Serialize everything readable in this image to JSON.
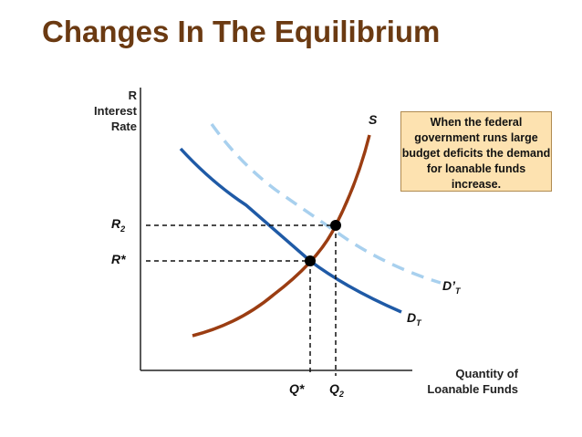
{
  "title": "Changes In The Equilibrium",
  "y_axis": {
    "line1": "R",
    "line2": "Interest",
    "line3": "Rate"
  },
  "x_axis": {
    "line1": "Quantity of",
    "line2": "Loanable Funds"
  },
  "curves": {
    "supply": "S",
    "demand_base": "D",
    "demand_new_base": "D’",
    "demand_sub": "T"
  },
  "price_labels": {
    "r_star": "R*",
    "r2_base": "R",
    "r2_sub": "2"
  },
  "quantity_labels": {
    "q_star": "Q*",
    "q2_base": "Q",
    "q2_sub": "2"
  },
  "callout": {
    "text": "When the federal government runs large budget deficits the demand for loanable funds increase."
  },
  "colors": {
    "title": "#6b3a12",
    "supply": "#9b3d12",
    "demand": "#1f5aa6",
    "demand_new": "#a8d0ee",
    "callout_bg": "#fde2b0"
  }
}
